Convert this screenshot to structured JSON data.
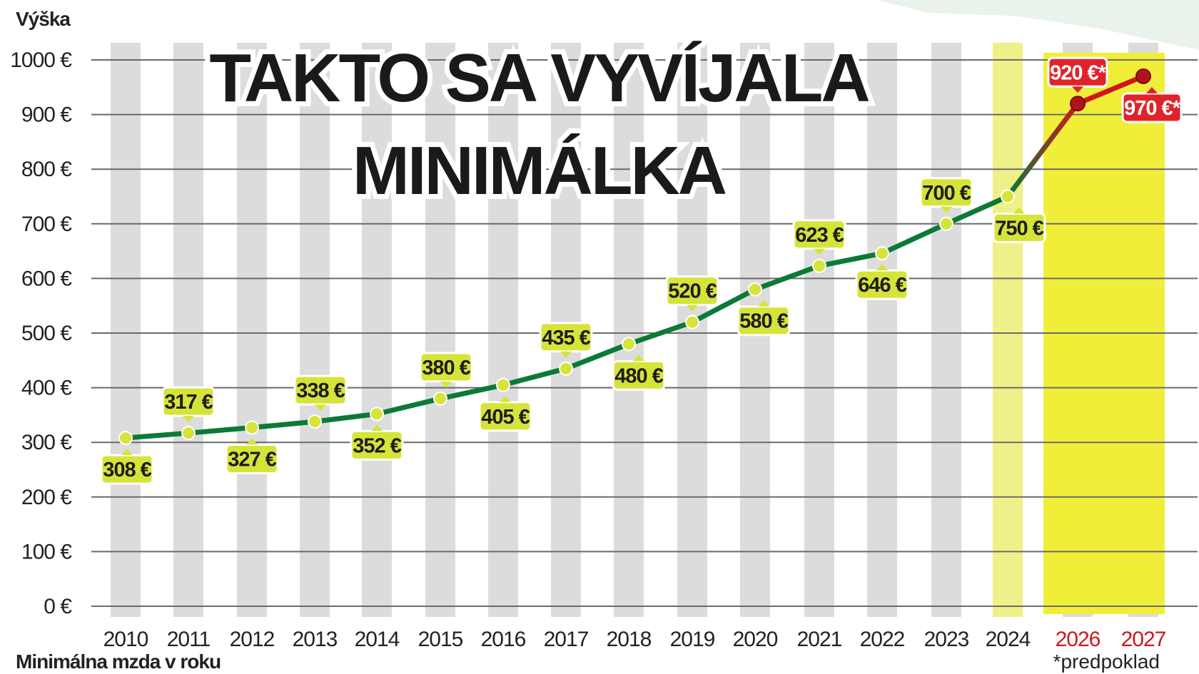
{
  "chart_data": {
    "type": "line",
    "title_line1": "TAKTO SA VYVÍJALA",
    "title_line2": "MINIMÁLKA",
    "ylabel": "Výška",
    "xlabel": "Minimálna mzda v roku",
    "note": "*predpoklad",
    "ylim": [
      0,
      1000
    ],
    "y_ticks": [
      "0 €",
      "100 €",
      "200 €",
      "300 €",
      "400 €",
      "500 €",
      "600 €",
      "700 €",
      "800 €",
      "900 €",
      "1000 €"
    ],
    "categories": [
      "2010",
      "2011",
      "2012",
      "2013",
      "2014",
      "2015",
      "2016",
      "2017",
      "2018",
      "2019",
      "2020",
      "2021",
      "2022",
      "2023",
      "2024",
      "2026",
      "2027"
    ],
    "series": [
      {
        "values": [
          308,
          317,
          327,
          338,
          352,
          380,
          405,
          435,
          480,
          520,
          580,
          623,
          646,
          700,
          750,
          920,
          970
        ],
        "labels": [
          "308 €",
          "317 €",
          "327 €",
          "338 €",
          "352 €",
          "380 €",
          "405 €",
          "435 €",
          "480 €",
          "520 €",
          "580 €",
          "623 €",
          "646 €",
          "700 €",
          "750 €",
          "920 €*",
          "970 €*"
        ]
      }
    ],
    "projected_categories": [
      "2026",
      "2027"
    ],
    "grid": true,
    "colors": {
      "actual_line": "#0b7a36",
      "projected_line": "#d0161c",
      "label_bg": "#d6e43a",
      "projected_label_bg": "#e0232a",
      "column_bg": "#dcdcdc",
      "highlight_light": "#eef08a",
      "highlight_strong": "#f1ee3a",
      "projected_year_text": "#d0161c"
    }
  }
}
